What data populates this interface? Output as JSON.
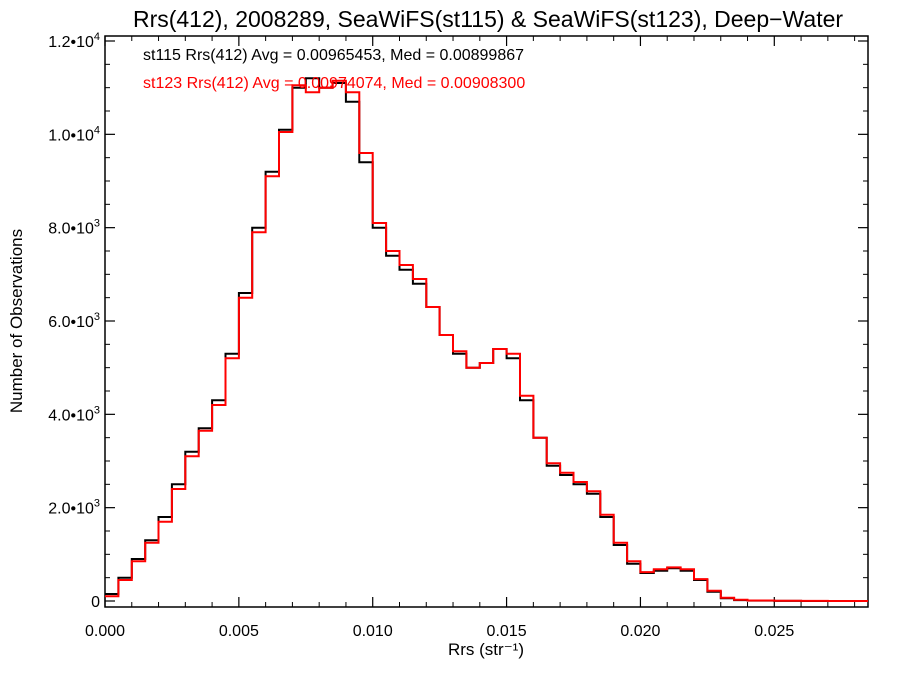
{
  "chart_data": {
    "type": "line",
    "title": "Rrs(412), 2008289, SeaWiFS(st115) & SeaWiFS(st123), Deep−Water",
    "xlabel": "Rrs (str⁻¹)",
    "ylabel": "Number of Observations",
    "xlim": [
      0.0,
      0.0285
    ],
    "ylim": [
      0,
      12000
    ],
    "x_ticks": [
      {
        "value": 0.0,
        "label": "0.000"
      },
      {
        "value": 0.005,
        "label": "0.005"
      },
      {
        "value": 0.01,
        "label": "0.010"
      },
      {
        "value": 0.015,
        "label": "0.015"
      },
      {
        "value": 0.02,
        "label": "0.020"
      },
      {
        "value": 0.025,
        "label": "0.025"
      }
    ],
    "y_ticks": [
      {
        "value": 0,
        "mant": "0",
        "exp": ""
      },
      {
        "value": 2000,
        "mant": "2.0•10",
        "exp": "3"
      },
      {
        "value": 4000,
        "mant": "4.0•10",
        "exp": "3"
      },
      {
        "value": 6000,
        "mant": "6.0•10",
        "exp": "3"
      },
      {
        "value": 8000,
        "mant": "8.0•10",
        "exp": "3"
      },
      {
        "value": 10000,
        "mant": "1.0•10",
        "exp": "4"
      },
      {
        "value": 12000,
        "mant": "1.2•10",
        "exp": "4"
      }
    ],
    "annotations": [
      {
        "text": "st115 Rrs(412) Avg = 0.00965453, Med = 0.00899867",
        "color": "#000000"
      },
      {
        "text": "st123 Rrs(412) Avg = 0.00974074, Med = 0.00908300",
        "color": "#ff0000"
      }
    ],
    "series": [
      {
        "color": "#000000",
        "x": [
          0.0,
          0.0005,
          0.001,
          0.0015,
          0.002,
          0.0025,
          0.003,
          0.0035,
          0.004,
          0.0045,
          0.005,
          0.0055,
          0.006,
          0.0065,
          0.007,
          0.0075,
          0.008,
          0.0085,
          0.009,
          0.0095,
          0.01,
          0.0105,
          0.011,
          0.0115,
          0.012,
          0.0125,
          0.013,
          0.0135,
          0.014,
          0.0145,
          0.015,
          0.0155,
          0.016,
          0.0165,
          0.017,
          0.0175,
          0.018,
          0.0185,
          0.019,
          0.0195,
          0.02,
          0.0205,
          0.021,
          0.0215,
          0.022,
          0.0225,
          0.023,
          0.0235,
          0.024,
          0.025,
          0.026,
          0.027,
          0.0285
        ],
        "y": [
          150,
          500,
          900,
          1300,
          1800,
          2500,
          3200,
          3700,
          4300,
          5300,
          6600,
          8000,
          9200,
          10100,
          11000,
          11200,
          11000,
          11100,
          10700,
          9400,
          8000,
          7400,
          7100,
          6800,
          6300,
          5700,
          5300,
          5000,
          5100,
          5400,
          5200,
          4300,
          3500,
          2900,
          2700,
          2500,
          2300,
          1800,
          1200,
          800,
          600,
          650,
          700,
          650,
          450,
          200,
          60,
          20,
          8,
          3,
          1,
          0,
          0
        ]
      },
      {
        "color": "#ff0000",
        "x": [
          0.0,
          0.0005,
          0.001,
          0.0015,
          0.002,
          0.0025,
          0.003,
          0.0035,
          0.004,
          0.0045,
          0.005,
          0.0055,
          0.006,
          0.0065,
          0.007,
          0.0075,
          0.008,
          0.0085,
          0.009,
          0.0095,
          0.01,
          0.0105,
          0.011,
          0.0115,
          0.012,
          0.0125,
          0.013,
          0.0135,
          0.014,
          0.0145,
          0.015,
          0.0155,
          0.016,
          0.0165,
          0.017,
          0.0175,
          0.018,
          0.0185,
          0.019,
          0.0195,
          0.02,
          0.0205,
          0.021,
          0.0215,
          0.022,
          0.0225,
          0.023,
          0.0235,
          0.024,
          0.025,
          0.026,
          0.027,
          0.0285
        ],
        "y": [
          100,
          450,
          850,
          1250,
          1700,
          2400,
          3100,
          3650,
          4200,
          5200,
          6500,
          7900,
          9100,
          10050,
          11050,
          10900,
          11000,
          11150,
          10900,
          9600,
          8100,
          7500,
          7200,
          6900,
          6300,
          5700,
          5350,
          5000,
          5100,
          5400,
          5300,
          4400,
          3500,
          2950,
          2750,
          2550,
          2350,
          1850,
          1250,
          850,
          620,
          680,
          720,
          680,
          470,
          220,
          70,
          25,
          10,
          4,
          2,
          1,
          1
        ]
      }
    ]
  }
}
